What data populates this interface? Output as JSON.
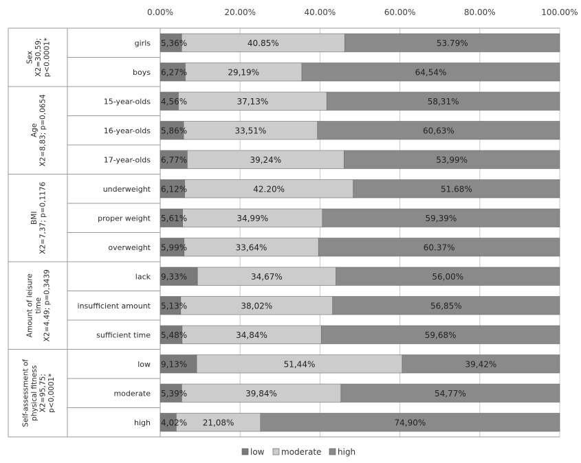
{
  "chart_data": {
    "type": "bar",
    "stacked": true,
    "orientation": "horizontal",
    "x_ticks": [
      "0.00%",
      "20.00%",
      "40.00%",
      "60.00%",
      "80.00%",
      "100.00%"
    ],
    "xlim": [
      0,
      100
    ],
    "grid": true,
    "legend_position": "bottom",
    "series": [
      {
        "name": "low",
        "color": "#7a7a7a"
      },
      {
        "name": "moderate",
        "color": "#cccccc"
      },
      {
        "name": "high",
        "color": "#8a8a8a"
      }
    ],
    "groups": [
      {
        "label_lines": [
          "Sex",
          "X2=30,59;",
          "p<0.0001*"
        ],
        "rows": [
          0,
          1
        ]
      },
      {
        "label_lines": [
          "Age",
          "X2=8,83; p=0,0654"
        ],
        "rows": [
          2,
          3,
          4
        ]
      },
      {
        "label_lines": [
          "BMI",
          "X2=7,37; p=0,1176"
        ],
        "rows": [
          5,
          6,
          7
        ]
      },
      {
        "label_lines": [
          "Amount of leisure",
          "time",
          "X2=4.49; p=0,3439"
        ],
        "rows": [
          8,
          9,
          10
        ]
      },
      {
        "label_lines": [
          "Self-assessment of",
          "physical fitness",
          "X2=95,75;",
          "p<0,0001*"
        ],
        "rows": [
          11,
          12,
          13
        ]
      }
    ],
    "rows": [
      {
        "category": "girls",
        "values": [
          5.36,
          40.85,
          53.79
        ],
        "labels": [
          "5,36%",
          "40.85%",
          "53.79%"
        ]
      },
      {
        "category": "boys",
        "values": [
          6.27,
          29.19,
          64.54
        ],
        "labels": [
          "6,27%",
          "29,19%",
          "64,54%"
        ]
      },
      {
        "category": "15-year-olds",
        "values": [
          4.56,
          37.13,
          58.31
        ],
        "labels": [
          "4,56%",
          "37,13%",
          "58,31%"
        ]
      },
      {
        "category": "16-year-olds",
        "values": [
          5.86,
          33.51,
          60.63
        ],
        "labels": [
          "5,86%",
          "33,51%",
          "60,63%"
        ]
      },
      {
        "category": "17-year-olds",
        "values": [
          6.77,
          39.24,
          53.99
        ],
        "labels": [
          "6,77%",
          "39,24%",
          "53,99%"
        ]
      },
      {
        "category": "underweight",
        "values": [
          6.12,
          42.2,
          51.68
        ],
        "labels": [
          "6,12%",
          "42.20%",
          "51.68%"
        ]
      },
      {
        "category": "proper weight",
        "values": [
          5.61,
          34.99,
          59.39
        ],
        "labels": [
          "5,61%",
          "34,99%",
          "59,39%"
        ]
      },
      {
        "category": "overweight",
        "values": [
          5.99,
          33.64,
          60.37
        ],
        "labels": [
          "5,99%",
          "33,64%",
          "60.37%"
        ]
      },
      {
        "category": "lack",
        "values": [
          9.33,
          34.67,
          56.0
        ],
        "labels": [
          "9,33%",
          "34,67%",
          "56,00%"
        ]
      },
      {
        "category": "insufficient amount",
        "values": [
          5.13,
          38.02,
          56.85
        ],
        "labels": [
          "5,13%",
          "38,02%",
          "56,85%"
        ]
      },
      {
        "category": "sufficient time",
        "values": [
          5.48,
          34.84,
          59.68
        ],
        "labels": [
          "5,48%",
          "34,84%",
          "59,68%"
        ]
      },
      {
        "category": "low",
        "values": [
          9.13,
          51.44,
          39.42
        ],
        "labels": [
          "9,13%",
          "51,44%",
          "39,42%"
        ]
      },
      {
        "category": "moderate",
        "values": [
          5.39,
          39.84,
          54.77
        ],
        "labels": [
          "5,39%",
          "39,84%",
          "54,77%"
        ]
      },
      {
        "category": "high",
        "values": [
          4.02,
          21.08,
          74.9
        ],
        "labels": [
          "4,02%",
          "21,08%",
          "74,90%"
        ]
      }
    ]
  }
}
